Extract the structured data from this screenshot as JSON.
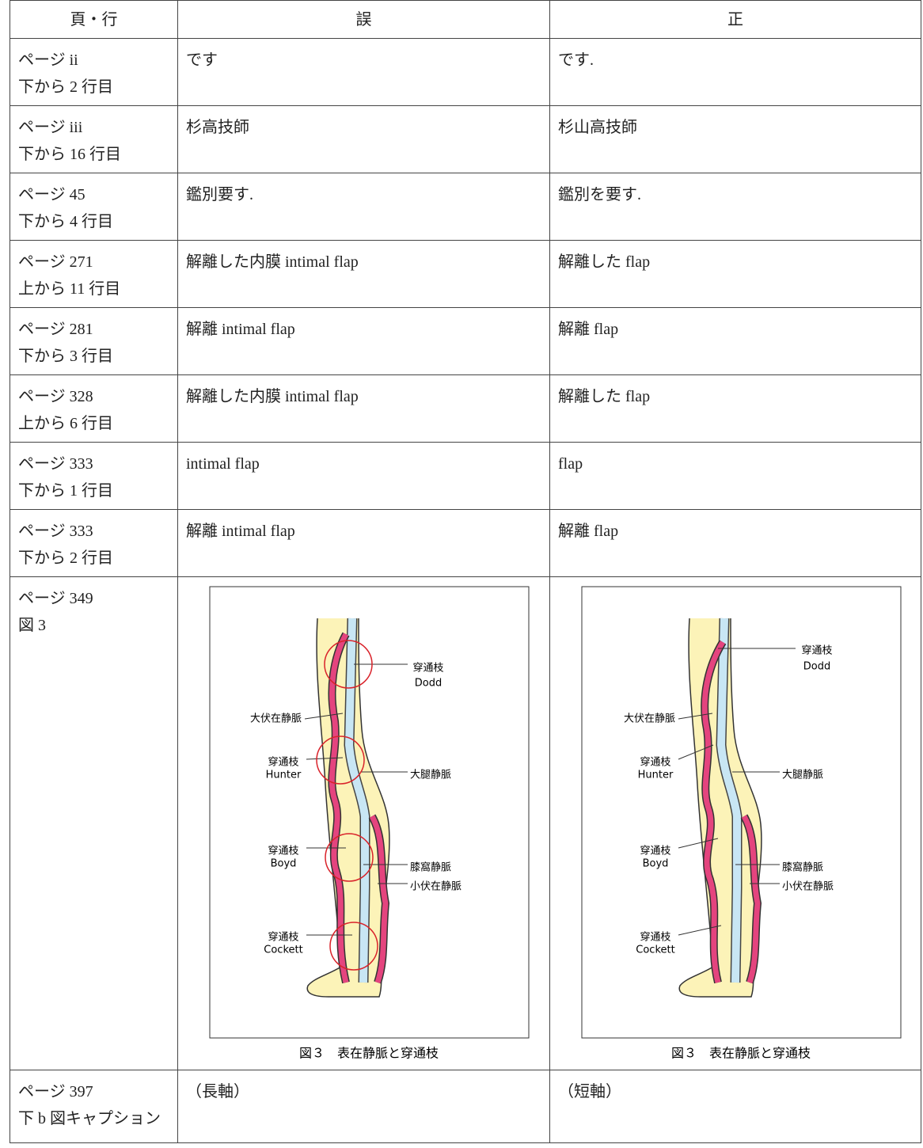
{
  "table": {
    "header": [
      "頁・行",
      "誤",
      "正"
    ],
    "rows": [
      {
        "location": [
          "ページ ii",
          "下から 2 行目"
        ],
        "wrong": "です",
        "correct": "です."
      },
      {
        "location": [
          "ページ iii",
          "下から 16 行目"
        ],
        "wrong": "杉高技師",
        "correct": "杉山高技師"
      },
      {
        "location": [
          "ページ 45",
          "下から 4 行目"
        ],
        "wrong": "鑑別要す.",
        "correct": "鑑別を要す."
      },
      {
        "location": [
          "ページ 271",
          "上から 11 行目"
        ],
        "wrong": "解離した内膜 intimal flap",
        "correct": "解離した flap"
      },
      {
        "location": [
          "ページ 281",
          "下から 3 行目"
        ],
        "wrong": "解離 intimal flap",
        "correct": "解離 flap"
      },
      {
        "location": [
          "ページ 328",
          "上から 6 行目"
        ],
        "wrong": "解離した内膜 intimal flap",
        "correct": "解離した flap"
      },
      {
        "location": [
          "ページ 333",
          "下から 1 行目"
        ],
        "wrong": "intimal flap",
        "correct": "flap"
      },
      {
        "location": [
          "ページ 333",
          "下から 2 行目"
        ],
        "wrong": "解離 intimal flap",
        "correct": "解離 flap"
      },
      {
        "location": [
          "ページ 349",
          "図 3"
        ],
        "wrong": {
          "caption": "図３　表在静脈と穿通枝",
          "labels": [
            "穿通枝",
            "Dodd",
            "大伏在静脈",
            "穿通枝",
            "Hunter",
            "大腿静脈",
            "穿通枝",
            "Boyd",
            "膝窩静脈",
            "小伏在静脈",
            "穿通枝",
            "Cockett"
          ]
        },
        "correct": {
          "caption": "図３　表在静脈と穿通枝",
          "labels": [
            "穿通枝",
            "Dodd",
            "大伏在静脈",
            "穿通枝",
            "Hunter",
            "大腿静脈",
            "穿通枝",
            "Boyd",
            "膝窩静脈",
            "小伏在静脈",
            "穿通枝",
            "Cockett"
          ]
        }
      },
      {
        "location": [
          "ページ 397",
          "下 b 図キャプション"
        ],
        "wrong": "（長軸）",
        "correct": "（短軸）"
      }
    ]
  }
}
